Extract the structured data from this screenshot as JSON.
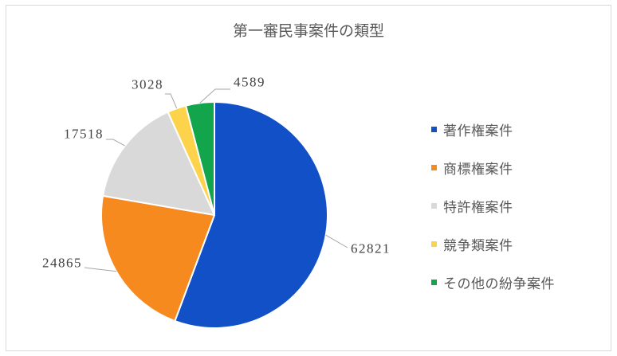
{
  "chart_data": {
    "type": "pie",
    "title": "第一審民事案件の類型",
    "categories": [
      "著作権案件",
      "商標権案件",
      "特許権案件",
      "競争類案件",
      "その他の紛争案件"
    ],
    "values": [
      62821,
      24865,
      17518,
      3028,
      4589
    ],
    "colors": [
      "#1250C8",
      "#F68A1E",
      "#D9D9D9",
      "#FCD34A",
      "#13A54B"
    ],
    "legend_position": "right"
  }
}
